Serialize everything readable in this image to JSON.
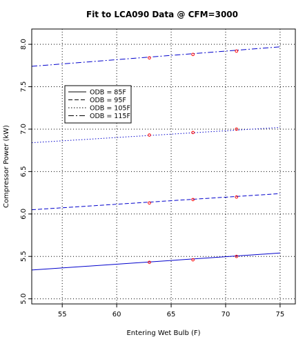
{
  "chart_data": {
    "type": "line",
    "title": "Fit to LCA090 Data @ CFM=3000",
    "xlabel": "Entering Wet Bulb (F)",
    "ylabel": "Compressor Power (kW)",
    "xlim": [
      52.2,
      76.4
    ],
    "ylim": [
      4.94,
      8.18
    ],
    "xticks": [
      55,
      60,
      65,
      70,
      75
    ],
    "yticks": [
      5.0,
      5.5,
      6.0,
      6.5,
      7.0,
      7.5,
      8.0
    ],
    "grid": true,
    "legend_position": "top-left",
    "fit_color": "#0000cc",
    "point_color": "#ff0000",
    "series": [
      {
        "name": "ODB = 85F",
        "linestyle": "solid",
        "fit_x": [
          52.2,
          75
        ],
        "fit_y": [
          5.34,
          5.54
        ],
        "points": [
          [
            63,
            5.43
          ],
          [
            67,
            5.46
          ],
          [
            71,
            5.5
          ]
        ]
      },
      {
        "name": "ODB = 95F",
        "linestyle": "dashed",
        "fit_x": [
          52.2,
          75
        ],
        "fit_y": [
          6.05,
          6.24
        ],
        "points": [
          [
            63,
            6.13
          ],
          [
            67,
            6.17
          ],
          [
            71,
            6.2
          ]
        ]
      },
      {
        "name": "ODB = 105F",
        "linestyle": "dotted",
        "fit_x": [
          52.2,
          75
        ],
        "fit_y": [
          6.84,
          7.02
        ],
        "points": [
          [
            63,
            6.93
          ],
          [
            67,
            6.96
          ],
          [
            71,
            7.0
          ]
        ]
      },
      {
        "name": "ODB = 115F",
        "linestyle": "dashdot",
        "fit_x": [
          52.2,
          75
        ],
        "fit_y": [
          7.74,
          7.97
        ],
        "points": [
          [
            63,
            7.84
          ],
          [
            67,
            7.88
          ],
          [
            71,
            7.92
          ]
        ]
      }
    ]
  }
}
